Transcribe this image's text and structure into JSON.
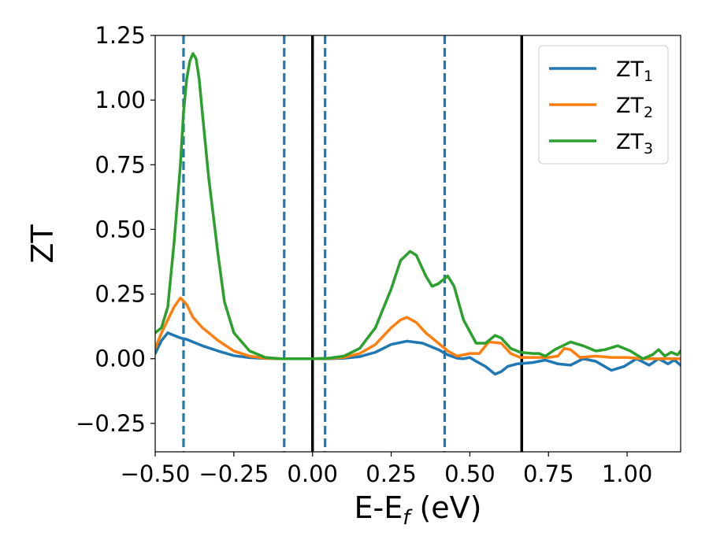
{
  "chart_data": {
    "type": "line",
    "xlabel": "E-E",
    "xlabel_sub": "f",
    "xlabel_unit": " (eV)",
    "ylabel": "ZT",
    "xlim": [
      -0.5,
      1.17
    ],
    "ylim": [
      -0.36,
      1.25
    ],
    "x_ticks": [
      -0.5,
      -0.25,
      0.0,
      0.25,
      0.5,
      0.75,
      1.0
    ],
    "x_tick_labels": [
      "−0.50",
      "−0.25",
      "0.00",
      "0.25",
      "0.50",
      "0.75",
      "1.00"
    ],
    "y_ticks": [
      -0.25,
      0.0,
      0.25,
      0.5,
      0.75,
      1.0,
      1.25
    ],
    "y_tick_labels": [
      "−0.25",
      "0.00",
      "0.25",
      "0.50",
      "0.75",
      "1.00",
      "1.25"
    ],
    "grid": false,
    "legend_position": "top-right",
    "series": [
      {
        "name": "ZT",
        "name_sub": "1",
        "color": "#1f77b4",
        "points": [
          [
            -0.5,
            0.02
          ],
          [
            -0.48,
            0.07
          ],
          [
            -0.46,
            0.1
          ],
          [
            -0.44,
            0.09
          ],
          [
            -0.42,
            0.08
          ],
          [
            -0.4,
            0.075
          ],
          [
            -0.38,
            0.065
          ],
          [
            -0.35,
            0.05
          ],
          [
            -0.3,
            0.03
          ],
          [
            -0.25,
            0.012
          ],
          [
            -0.2,
            0.004
          ],
          [
            -0.15,
            0.001
          ],
          [
            -0.1,
            0.0
          ],
          [
            0.0,
            0.0
          ],
          [
            0.05,
            0.0
          ],
          [
            0.1,
            0.002
          ],
          [
            0.15,
            0.008
          ],
          [
            0.2,
            0.025
          ],
          [
            0.25,
            0.055
          ],
          [
            0.3,
            0.068
          ],
          [
            0.35,
            0.06
          ],
          [
            0.4,
            0.035
          ],
          [
            0.43,
            0.015
          ],
          [
            0.46,
            0.002
          ],
          [
            0.48,
            0.0
          ],
          [
            0.5,
            0.005
          ],
          [
            0.52,
            -0.01
          ],
          [
            0.55,
            -0.03
          ],
          [
            0.58,
            -0.06
          ],
          [
            0.6,
            -0.05
          ],
          [
            0.62,
            -0.03
          ],
          [
            0.65,
            -0.02
          ],
          [
            0.7,
            -0.015
          ],
          [
            0.74,
            -0.005
          ],
          [
            0.78,
            -0.02
          ],
          [
            0.82,
            -0.025
          ],
          [
            0.86,
            0.0
          ],
          [
            0.9,
            -0.01
          ],
          [
            0.95,
            -0.045
          ],
          [
            0.99,
            -0.03
          ],
          [
            1.03,
            0.0
          ],
          [
            1.07,
            -0.025
          ],
          [
            1.1,
            0.0
          ],
          [
            1.13,
            -0.02
          ],
          [
            1.15,
            -0.005
          ],
          [
            1.17,
            -0.025
          ]
        ]
      },
      {
        "name": "ZT",
        "name_sub": "2",
        "color": "#ff7f0e",
        "points": [
          [
            -0.5,
            0.04
          ],
          [
            -0.48,
            0.1
          ],
          [
            -0.46,
            0.15
          ],
          [
            -0.44,
            0.2
          ],
          [
            -0.42,
            0.235
          ],
          [
            -0.4,
            0.21
          ],
          [
            -0.38,
            0.16
          ],
          [
            -0.35,
            0.12
          ],
          [
            -0.3,
            0.07
          ],
          [
            -0.25,
            0.03
          ],
          [
            -0.2,
            0.01
          ],
          [
            -0.15,
            0.002
          ],
          [
            -0.1,
            0.0
          ],
          [
            0.0,
            0.0
          ],
          [
            0.05,
            0.001
          ],
          [
            0.1,
            0.005
          ],
          [
            0.15,
            0.02
          ],
          [
            0.2,
            0.055
          ],
          [
            0.25,
            0.12
          ],
          [
            0.28,
            0.15
          ],
          [
            0.3,
            0.16
          ],
          [
            0.33,
            0.14
          ],
          [
            0.36,
            0.1
          ],
          [
            0.4,
            0.06
          ],
          [
            0.43,
            0.03
          ],
          [
            0.46,
            0.01
          ],
          [
            0.5,
            0.02
          ],
          [
            0.53,
            0.02
          ],
          [
            0.56,
            0.065
          ],
          [
            0.6,
            0.06
          ],
          [
            0.63,
            0.02
          ],
          [
            0.66,
            0.005
          ],
          [
            0.7,
            0.005
          ],
          [
            0.75,
            0.005
          ],
          [
            0.78,
            0.01
          ],
          [
            0.8,
            0.04
          ],
          [
            0.82,
            0.035
          ],
          [
            0.85,
            0.005
          ],
          [
            0.9,
            0.01
          ],
          [
            0.95,
            0.005
          ],
          [
            1.0,
            0.005
          ],
          [
            1.05,
            0.0
          ],
          [
            1.1,
            0.0
          ],
          [
            1.17,
            0.0
          ]
        ]
      },
      {
        "name": "ZT",
        "name_sub": "3",
        "color": "#2ca02c",
        "points": [
          [
            -0.5,
            0.1
          ],
          [
            -0.48,
            0.12
          ],
          [
            -0.46,
            0.2
          ],
          [
            -0.44,
            0.45
          ],
          [
            -0.42,
            0.75
          ],
          [
            -0.41,
            0.95
          ],
          [
            -0.4,
            1.08
          ],
          [
            -0.39,
            1.15
          ],
          [
            -0.38,
            1.18
          ],
          [
            -0.37,
            1.16
          ],
          [
            -0.36,
            1.08
          ],
          [
            -0.35,
            0.95
          ],
          [
            -0.33,
            0.7
          ],
          [
            -0.3,
            0.4
          ],
          [
            -0.28,
            0.22
          ],
          [
            -0.25,
            0.1
          ],
          [
            -0.2,
            0.03
          ],
          [
            -0.15,
            0.005
          ],
          [
            -0.1,
            0.0
          ],
          [
            0.0,
            0.0
          ],
          [
            0.05,
            0.002
          ],
          [
            0.1,
            0.01
          ],
          [
            0.15,
            0.04
          ],
          [
            0.2,
            0.12
          ],
          [
            0.25,
            0.27
          ],
          [
            0.28,
            0.38
          ],
          [
            0.31,
            0.415
          ],
          [
            0.33,
            0.4
          ],
          [
            0.36,
            0.32
          ],
          [
            0.38,
            0.28
          ],
          [
            0.4,
            0.29
          ],
          [
            0.43,
            0.32
          ],
          [
            0.45,
            0.28
          ],
          [
            0.48,
            0.15
          ],
          [
            0.52,
            0.06
          ],
          [
            0.55,
            0.06
          ],
          [
            0.58,
            0.09
          ],
          [
            0.6,
            0.08
          ],
          [
            0.63,
            0.04
          ],
          [
            0.66,
            0.025
          ],
          [
            0.7,
            0.02
          ],
          [
            0.72,
            0.02
          ],
          [
            0.74,
            0.01
          ],
          [
            0.77,
            0.035
          ],
          [
            0.82,
            0.065
          ],
          [
            0.86,
            0.05
          ],
          [
            0.9,
            0.03
          ],
          [
            0.93,
            0.035
          ],
          [
            0.97,
            0.05
          ],
          [
            1.01,
            0.03
          ],
          [
            1.05,
            0.0
          ],
          [
            1.08,
            0.015
          ],
          [
            1.1,
            0.035
          ],
          [
            1.12,
            0.01
          ],
          [
            1.14,
            0.025
          ],
          [
            1.16,
            0.015
          ],
          [
            1.17,
            0.03
          ]
        ]
      }
    ],
    "vertical_lines": [
      {
        "x": -0.41,
        "style": "dashed",
        "color": "#1f77b4"
      },
      {
        "x": -0.09,
        "style": "dashed",
        "color": "#1f77b4"
      },
      {
        "x": 0.0,
        "style": "solid",
        "color": "#000000"
      },
      {
        "x": 0.04,
        "style": "dashed",
        "color": "#1f77b4"
      },
      {
        "x": 0.42,
        "style": "dashed",
        "color": "#1f77b4"
      },
      {
        "x": 0.665,
        "style": "solid",
        "color": "#000000"
      }
    ]
  }
}
